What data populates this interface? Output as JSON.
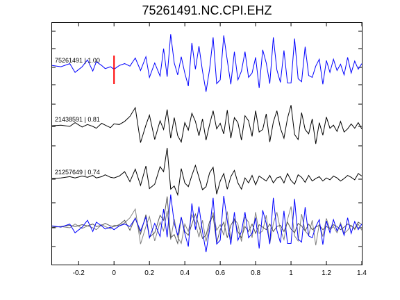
{
  "chart_data": {
    "type": "line",
    "title": "75261491.NC.CPI.EHZ",
    "xlabel": "",
    "ylabel": "",
    "xlim": [
      -0.35,
      1.4
    ],
    "x_ticks": [
      -0.2,
      0,
      0.2,
      0.4,
      0.6,
      0.8,
      1,
      1.2,
      1.4
    ],
    "x_tick_labels": [
      "-0.2",
      "0",
      "0.2",
      "0.4",
      "0.6",
      "0.8",
      "1",
      "1.2",
      "1.4"
    ],
    "grid": false,
    "pick_marker": {
      "x": 0,
      "color": "#ff0000"
    },
    "colors": {
      "primary": "#0000ff",
      "secondary": "#000000",
      "overlay_gray": "#808080"
    },
    "series": [
      {
        "label": "75261491 | 1.00",
        "role": "template",
        "color": "#0000ff",
        "x": [
          -0.35,
          -0.3,
          -0.25,
          -0.22,
          -0.18,
          -0.15,
          -0.12,
          -0.1,
          -0.07,
          -0.05,
          -0.02,
          0.0,
          0.03,
          0.06,
          0.09,
          0.12,
          0.15,
          0.18,
          0.2,
          0.23,
          0.26,
          0.28,
          0.3,
          0.32,
          0.34,
          0.36,
          0.38,
          0.4,
          0.42,
          0.44,
          0.46,
          0.48,
          0.5,
          0.52,
          0.54,
          0.56,
          0.58,
          0.6,
          0.62,
          0.64,
          0.66,
          0.68,
          0.7,
          0.72,
          0.74,
          0.76,
          0.78,
          0.8,
          0.82,
          0.84,
          0.86,
          0.88,
          0.9,
          0.92,
          0.94,
          0.96,
          0.98,
          1.0,
          1.02,
          1.04,
          1.06,
          1.08,
          1.1,
          1.12,
          1.14,
          1.16,
          1.18,
          1.2,
          1.22,
          1.24,
          1.26,
          1.28,
          1.3,
          1.32,
          1.34,
          1.36,
          1.38,
          1.4
        ],
        "y": [
          0.3,
          0.1,
          0.6,
          -0.8,
          0.1,
          1.2,
          -0.6,
          0.9,
          0.3,
          -0.2,
          0.1,
          -0.3,
          0.3,
          0.6,
          0.2,
          1.5,
          -0.5,
          1.7,
          -1.6,
          0.7,
          -1.4,
          3.0,
          -1.5,
          5.3,
          0.7,
          -1.2,
          1.7,
          -0.9,
          -3.0,
          3.9,
          -0.3,
          3.4,
          -0.6,
          -3.9,
          -0.3,
          4.8,
          -2.6,
          -2.0,
          5.1,
          1.1,
          -2.7,
          2.5,
          -2.0,
          -0.6,
          2.5,
          -1.6,
          -0.9,
          1.6,
          -3.3,
          2.8,
          0.7,
          -2.6,
          4.8,
          -0.4,
          -2.4,
          2.7,
          -2.5,
          -2.5,
          4.6,
          -1.8,
          -2.3,
          3.3,
          -1.3,
          -1.6,
          0.2,
          1.3,
          -2.7,
          1.1,
          -0.8,
          1.3,
          -0.5,
          0.5,
          -1.2,
          1.6,
          -0.9,
          1.0,
          -0.3,
          0.6
        ]
      },
      {
        "label": "21438591 | 0.81",
        "role": "match",
        "color": "#000000",
        "x": [
          -0.35,
          -0.3,
          -0.25,
          -0.22,
          -0.18,
          -0.15,
          -0.12,
          -0.1,
          -0.07,
          -0.05,
          -0.02,
          0.0,
          0.03,
          0.06,
          0.09,
          0.12,
          0.15,
          0.18,
          0.2,
          0.23,
          0.26,
          0.28,
          0.3,
          0.32,
          0.34,
          0.36,
          0.38,
          0.4,
          0.42,
          0.44,
          0.46,
          0.48,
          0.5,
          0.52,
          0.54,
          0.56,
          0.58,
          0.6,
          0.62,
          0.64,
          0.66,
          0.68,
          0.7,
          0.72,
          0.74,
          0.76,
          0.78,
          0.8,
          0.82,
          0.84,
          0.86,
          0.88,
          0.9,
          0.92,
          0.94,
          0.96,
          0.98,
          1.0,
          1.02,
          1.04,
          1.06,
          1.08,
          1.1,
          1.12,
          1.14,
          1.16,
          1.18,
          1.2,
          1.22,
          1.24,
          1.26,
          1.28,
          1.3,
          1.32,
          1.34,
          1.36,
          1.38,
          1.4
        ],
        "y": [
          0.1,
          0.2,
          0.0,
          0.6,
          -0.1,
          0.3,
          0.0,
          -0.3,
          0.5,
          0.2,
          -0.2,
          0.4,
          0.3,
          0.8,
          1.6,
          3.0,
          -2.6,
          0.2,
          1.8,
          -2.1,
          0.9,
          -0.5,
          2.7,
          -1.9,
          1.4,
          -1.5,
          -2.5,
          0.6,
          -0.6,
          2.1,
          0.8,
          -1.5,
          1.2,
          -2.2,
          0.3,
          2.5,
          -0.4,
          0.5,
          -1.2,
          2.6,
          -1.9,
          1.4,
          0.6,
          -2.2,
          1.7,
          0.9,
          -1.6,
          2.5,
          -0.9,
          -0.5,
          2.0,
          -2.5,
          0.7,
          2.5,
          -0.3,
          -1.9,
          1.3,
          3.4,
          -1.3,
          -2.1,
          2.2,
          -0.5,
          -1.2,
          1.2,
          -2.8,
          0.6,
          -1.4,
          1.5,
          -0.3,
          0.2,
          -0.8,
          0.8,
          -0.9,
          -0.4,
          0.4,
          -0.3,
          0.6,
          -0.4
        ]
      },
      {
        "label": "21257649 | 0.74",
        "role": "match",
        "color": "#000000",
        "x": [
          -0.35,
          -0.3,
          -0.25,
          -0.22,
          -0.18,
          -0.15,
          -0.12,
          -0.1,
          -0.07,
          -0.05,
          -0.02,
          0.0,
          0.03,
          0.06,
          0.09,
          0.12,
          0.15,
          0.18,
          0.2,
          0.23,
          0.26,
          0.28,
          0.3,
          0.32,
          0.34,
          0.36,
          0.38,
          0.4,
          0.42,
          0.44,
          0.46,
          0.48,
          0.5,
          0.52,
          0.54,
          0.56,
          0.58,
          0.6,
          0.62,
          0.64,
          0.66,
          0.68,
          0.7,
          0.72,
          0.74,
          0.76,
          0.78,
          0.8,
          0.82,
          0.84,
          0.86,
          0.88,
          0.9,
          0.92,
          0.94,
          0.96,
          0.98,
          1.0,
          1.02,
          1.04,
          1.06,
          1.08,
          1.1,
          1.12,
          1.14,
          1.16,
          1.18,
          1.2,
          1.22,
          1.24,
          1.26,
          1.28,
          1.3,
          1.32,
          1.34,
          1.36,
          1.38,
          1.4
        ],
        "y": [
          0.1,
          0.2,
          0.4,
          0.2,
          0.5,
          0.3,
          0.6,
          0.2,
          0.4,
          0.7,
          0.3,
          0.2,
          0.5,
          1.2,
          -0.4,
          1.6,
          -1.0,
          2.1,
          -1.5,
          -0.8,
          2.0,
          1.2,
          5.0,
          -1.6,
          -1.1,
          -2.5,
          1.7,
          -0.6,
          -1.2,
          0.6,
          2.2,
          0.3,
          -1.7,
          -1.2,
          1.0,
          1.9,
          -2.4,
          -0.3,
          0.9,
          -1.6,
          0.4,
          1.4,
          -0.6,
          -1.6,
          0.2,
          -0.6,
          0.6,
          -0.9,
          0.5,
          0.1,
          -0.3,
          0.6,
          -0.6,
          0.2,
          0.4,
          -0.6,
          0.9,
          -0.2,
          -0.8,
          0.7,
          0.3,
          -0.5,
          0.6,
          -0.3,
          0.1,
          0.4,
          -0.3,
          0.2,
          -0.1,
          0.5,
          0.2,
          -0.3,
          0.1,
          0.6,
          0.3,
          -0.1,
          0.9,
          0.5
        ]
      }
    ]
  }
}
